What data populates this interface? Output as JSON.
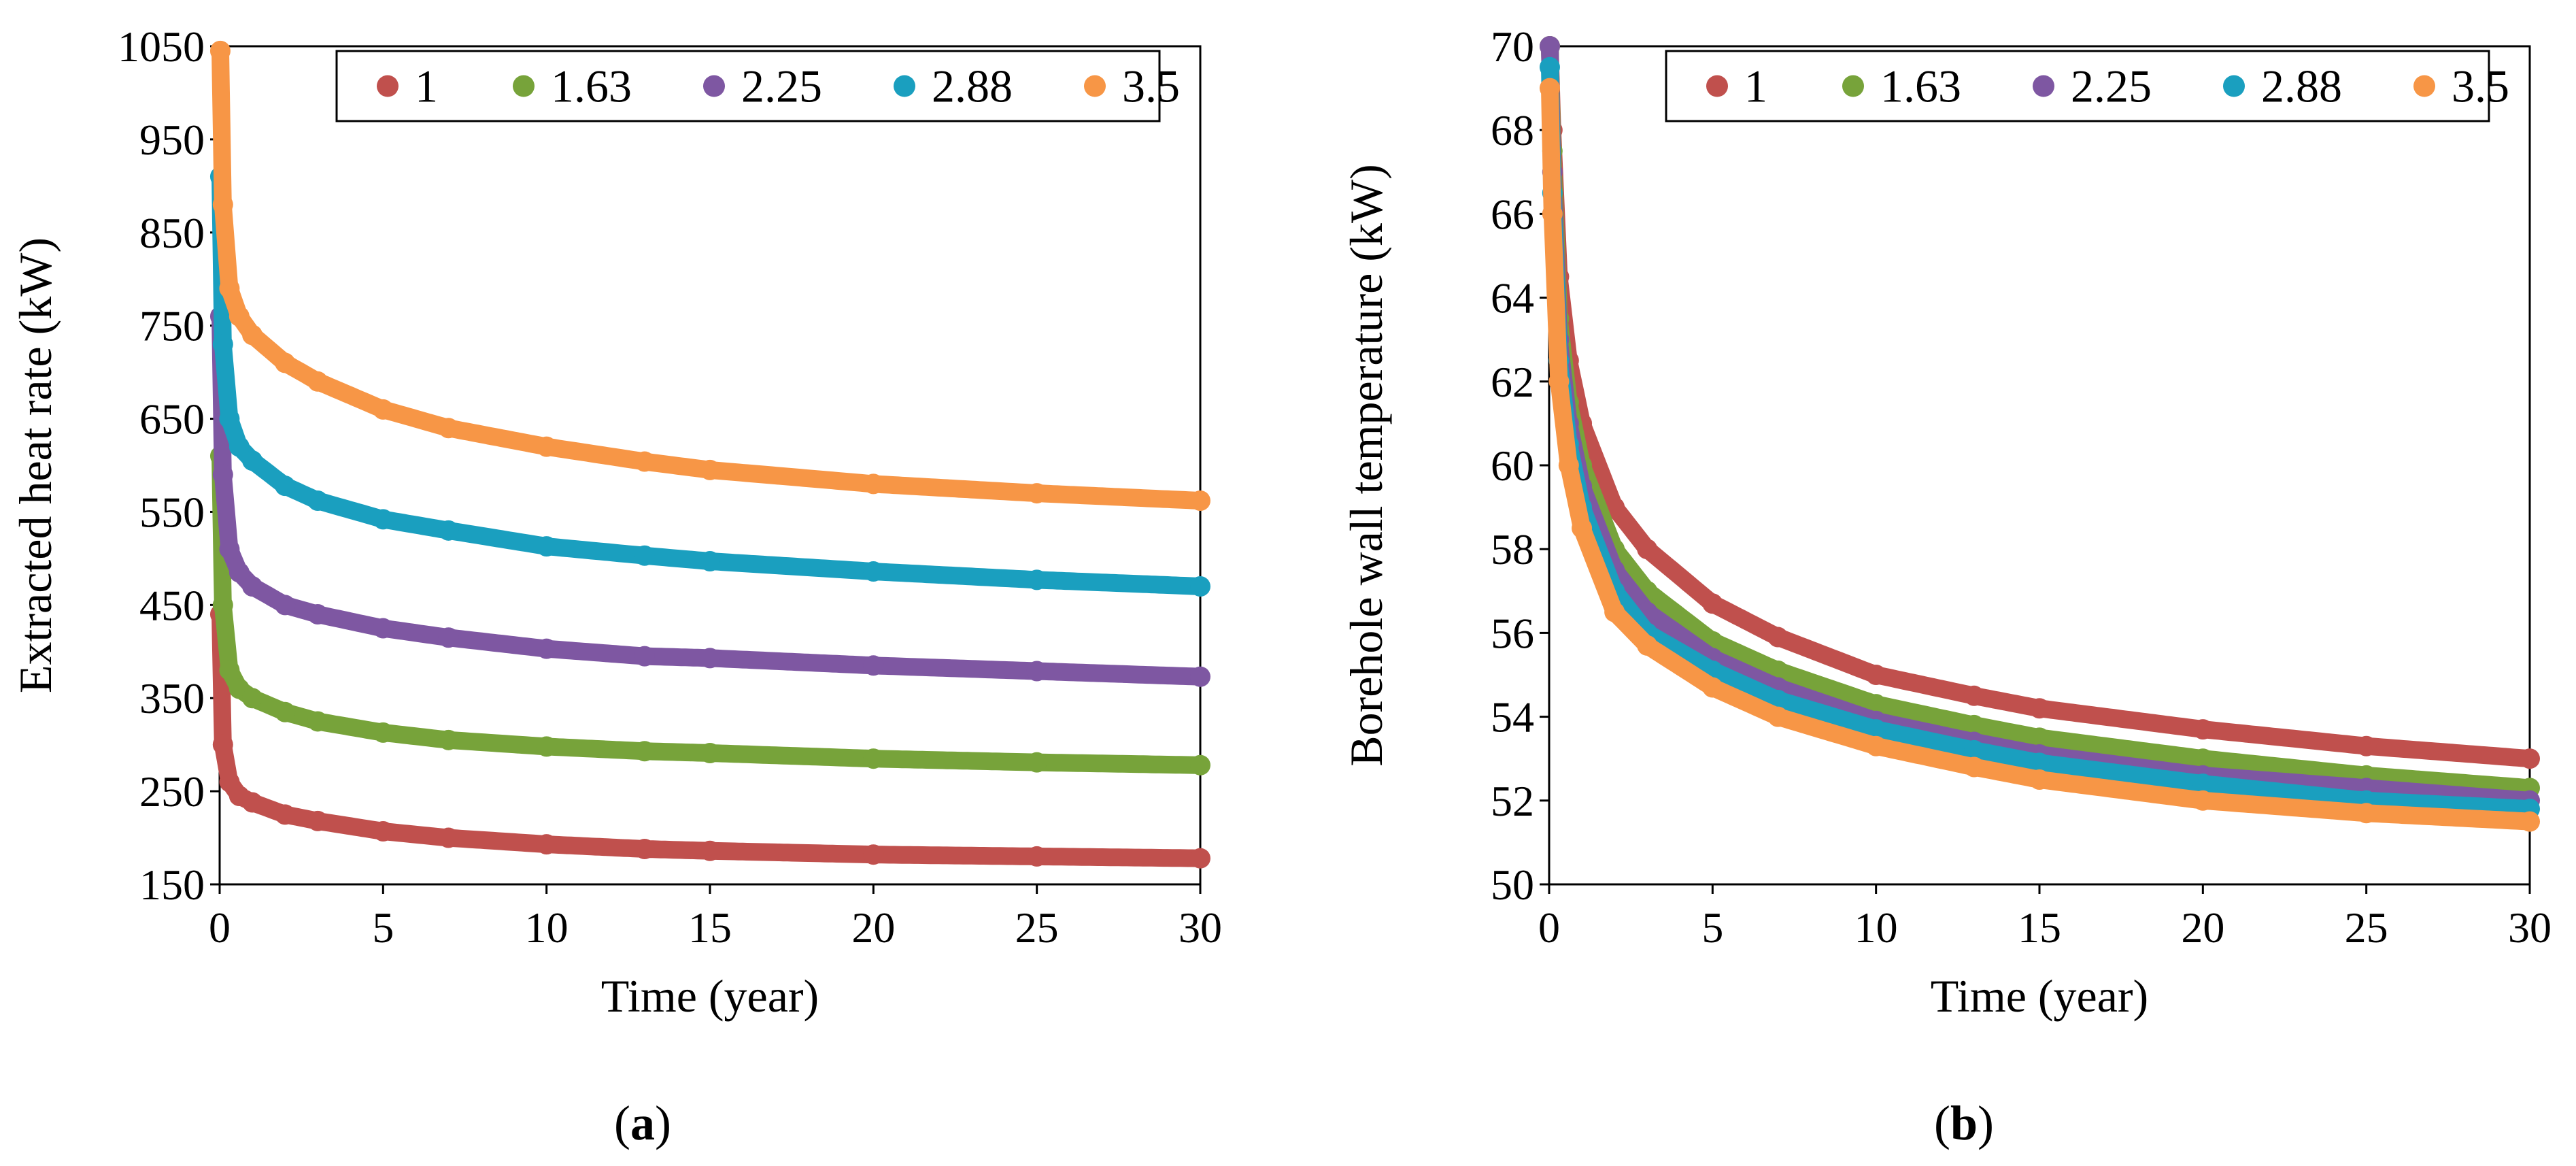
{
  "panel_labels": [
    {
      "open": "(",
      "letter": "a",
      "close": ")"
    },
    {
      "open": "(",
      "letter": "b",
      "close": ")"
    }
  ],
  "chart_data": [
    {
      "type": "scatter",
      "title": "",
      "xlabel": "Time (year)",
      "ylabel": "Extracted heat rate (kW)",
      "xlim": [
        0,
        30
      ],
      "ylim": [
        150,
        1050
      ],
      "xticks": [
        0,
        5,
        10,
        15,
        20,
        25,
        30
      ],
      "yticks": [
        150,
        250,
        350,
        450,
        550,
        650,
        750,
        850,
        950,
        1050
      ],
      "x": [
        0.02,
        0.1,
        0.3,
        0.6,
        1,
        2,
        3,
        5,
        7,
        10,
        13,
        15,
        20,
        25,
        30
      ],
      "series": [
        {
          "name": "1",
          "color": "#c0504d",
          "values": [
            440,
            300,
            260,
            245,
            238,
            225,
            218,
            207,
            200,
            193,
            188,
            186,
            182,
            180,
            178
          ]
        },
        {
          "name": "1.63",
          "color": "#77a33a",
          "values": [
            610,
            450,
            380,
            360,
            350,
            335,
            325,
            313,
            305,
            298,
            293,
            291,
            285,
            281,
            278
          ]
        },
        {
          "name": "2.25",
          "color": "#7e57a2",
          "values": [
            760,
            590,
            510,
            485,
            470,
            450,
            440,
            425,
            415,
            403,
            395,
            393,
            385,
            379,
            373
          ]
        },
        {
          "name": "2.88",
          "color": "#1a9fbf",
          "values": [
            910,
            730,
            650,
            620,
            605,
            578,
            562,
            542,
            530,
            513,
            503,
            497,
            486,
            477,
            470
          ]
        },
        {
          "name": "3.5",
          "color": "#f79646",
          "values": [
            1045,
            880,
            790,
            760,
            740,
            710,
            690,
            660,
            640,
            620,
            604,
            595,
            580,
            570,
            562
          ]
        }
      ],
      "legend": "top"
    },
    {
      "type": "scatter",
      "title": "",
      "xlabel": "Time (year)",
      "ylabel": "Borehole wall temperature (kW)",
      "xlim": [
        0,
        30
      ],
      "ylim": [
        50,
        70
      ],
      "xticks": [
        0,
        5,
        10,
        15,
        20,
        25,
        30
      ],
      "yticks": [
        50,
        52,
        54,
        56,
        58,
        60,
        62,
        64,
        66,
        68,
        70
      ],
      "x": [
        0.02,
        0.1,
        0.3,
        0.6,
        1,
        2,
        3,
        5,
        7,
        10,
        13,
        15,
        20,
        25,
        30
      ],
      "series": [
        {
          "name": "1",
          "color": "#c0504d",
          "values": [
            70,
            68,
            64.5,
            62.5,
            61,
            59,
            58,
            56.7,
            55.9,
            55,
            54.5,
            54.2,
            53.7,
            53.3,
            53.0
          ]
        },
        {
          "name": "1.63",
          "color": "#77a33a",
          "values": [
            70,
            67.5,
            63.5,
            61.5,
            60,
            58,
            57,
            55.8,
            55.1,
            54.3,
            53.8,
            53.5,
            53.0,
            52.6,
            52.3
          ]
        },
        {
          "name": "2.25",
          "color": "#7e57a2",
          "values": [
            70,
            67,
            63,
            61,
            59.5,
            57.5,
            56.5,
            55.4,
            54.7,
            53.9,
            53.4,
            53.1,
            52.6,
            52.3,
            52.0
          ]
        },
        {
          "name": "2.88",
          "color": "#1a9fbf",
          "values": [
            69.5,
            66.5,
            62.5,
            60.5,
            59,
            57,
            56,
            55.1,
            54.4,
            53.7,
            53.2,
            52.9,
            52.4,
            52.0,
            51.8
          ]
        },
        {
          "name": "3.5",
          "color": "#f79646",
          "values": [
            69,
            66,
            62,
            60,
            58.5,
            56.5,
            55.7,
            54.7,
            54.0,
            53.3,
            52.8,
            52.5,
            52.0,
            51.7,
            51.5
          ]
        }
      ],
      "legend": "top"
    }
  ]
}
